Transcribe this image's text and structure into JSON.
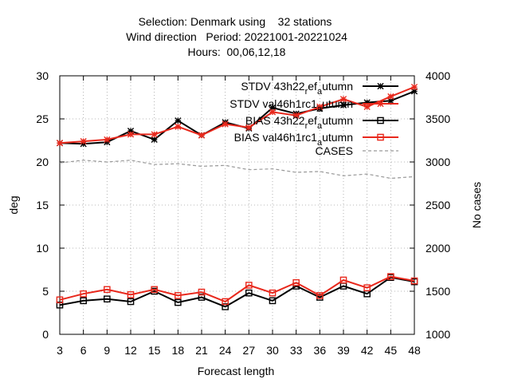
{
  "chart_data": {
    "type": "line",
    "title_lines": [
      "Selection: Denmark using    32 stations",
      "Wind direction   Period: 20221001-20221024",
      "Hours:  00,06,12,18"
    ],
    "xlabel": "Forecast length",
    "ylabel": "deg",
    "y2label": "No cases",
    "x": [
      3,
      6,
      9,
      12,
      15,
      18,
      21,
      24,
      27,
      30,
      33,
      36,
      39,
      42,
      45,
      48
    ],
    "xlim": [
      3,
      48
    ],
    "ylim": [
      0,
      30
    ],
    "y2lim": [
      1000,
      4000
    ],
    "xticks": [
      "3",
      "6",
      "9",
      "12",
      "15",
      "18",
      "21",
      "24",
      "27",
      "30",
      "33",
      "36",
      "39",
      "42",
      "45",
      "48"
    ],
    "yticks": [
      "0",
      "5",
      "10",
      "15",
      "20",
      "25",
      "30"
    ],
    "y2ticks": [
      "1000",
      "1500",
      "2000",
      "2500",
      "3000",
      "3500",
      "4000"
    ],
    "grid": true,
    "legend_position": "top-right",
    "series": [
      {
        "name": "STDV 43h22_ref_autumn",
        "legend_parts": [
          "STDV 43h22",
          "r",
          "ef",
          "a",
          "utumn"
        ],
        "axis": "left",
        "color": "#000000",
        "marker": "star",
        "values": [
          22.2,
          22.1,
          22.3,
          23.6,
          22.6,
          24.8,
          23.1,
          24.6,
          23.9,
          26.3,
          25.6,
          26.2,
          26.6,
          26.9,
          27.1,
          28.2
        ]
      },
      {
        "name": "STDV val46h1rc1_autumn",
        "legend_parts": [
          "STDV val46h1rc1",
          "a",
          "utumn"
        ],
        "axis": "left",
        "color": "#e8281c",
        "marker": "star",
        "values": [
          22.2,
          22.4,
          22.6,
          23.2,
          23.2,
          24.1,
          23.1,
          24.4,
          24.0,
          25.8,
          25.4,
          26.4,
          27.3,
          26.4,
          27.6,
          28.7
        ]
      },
      {
        "name": "BIAS 43h22_ref_autumn",
        "legend_parts": [
          "BIAS 43h22",
          "r",
          "ef",
          "a",
          "utumn"
        ],
        "axis": "left",
        "color": "#000000",
        "marker": "square",
        "values": [
          3.4,
          3.9,
          4.1,
          3.8,
          5.0,
          3.7,
          4.3,
          3.2,
          4.8,
          3.9,
          5.6,
          4.3,
          5.6,
          4.7,
          6.6,
          6.1
        ]
      },
      {
        "name": "BIAS val46h1rc1_autumn",
        "legend_parts": [
          "BIAS val46h1rc1",
          "a",
          "utumn"
        ],
        "axis": "left",
        "color": "#e8281c",
        "marker": "square",
        "values": [
          4.0,
          4.7,
          5.2,
          4.6,
          5.2,
          4.5,
          4.9,
          3.8,
          5.7,
          4.8,
          6.0,
          4.5,
          6.3,
          5.4,
          6.7,
          6.2
        ]
      },
      {
        "name": "CASES",
        "legend_parts": [
          "CASES"
        ],
        "axis": "right",
        "color": "#999999",
        "marker": "none",
        "dashed": true,
        "values": [
          2990,
          3020,
          3000,
          3020,
          2970,
          2980,
          2950,
          2960,
          2910,
          2920,
          2880,
          2890,
          2840,
          2860,
          2810,
          2830
        ]
      }
    ]
  }
}
